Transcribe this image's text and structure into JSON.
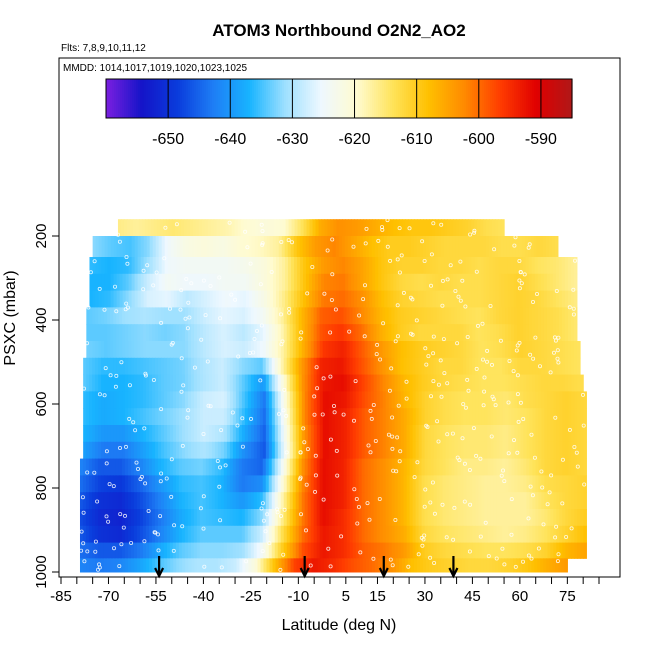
{
  "chart_data": {
    "type": "heatmap",
    "title": "ATOM3 Northbound O2N2_AO2",
    "flights_note": "Flts: 7,8,9,10,11,12",
    "dates_note": "MMDD: 1014,1017,1019,1020,1023,1025",
    "xlabel": "Latitude (deg N)",
    "ylabel": "PSXC (mbar)",
    "xlim": [
      -85,
      85
    ],
    "ylim": [
      1000,
      0
    ],
    "x_ticks": [
      -85,
      -70,
      -55,
      -40,
      -25,
      -10,
      5,
      15,
      30,
      45,
      60,
      75
    ],
    "x_tick_labels": [
      "-85",
      "-70",
      "-55",
      "-40",
      "-25",
      "-10",
      "5",
      "15",
      "30",
      "45",
      "60",
      "75"
    ],
    "y_ticks": [
      200,
      400,
      600,
      800,
      1000
    ],
    "y_tick_labels": [
      "200",
      "400",
      "600",
      "800",
      "1000"
    ],
    "colorbar": {
      "range": [
        -660,
        -585
      ],
      "ticks": [
        -650,
        -640,
        -630,
        -620,
        -610,
        -600,
        -590
      ],
      "tick_labels": [
        "-650",
        "-640",
        "-630",
        "-620",
        "-610",
        "-600",
        "-590"
      ],
      "colors": [
        "#7b1fe0",
        "#1414c8",
        "#0a3cdc",
        "#1e7ef5",
        "#18b4ff",
        "#9ee0ff",
        "#eef8ff",
        "#fffbd0",
        "#ffe35a",
        "#ffc000",
        "#ff8a00",
        "#ff3c00",
        "#e00000",
        "#b01818"
      ]
    },
    "profile_markers_lat": [
      -54,
      -8,
      17,
      39
    ],
    "pressure_bands": [
      {
        "p": 170,
        "lat_min": -67,
        "lat_max": 55,
        "values": [
          -616,
          -617,
          -616,
          -615,
          -616,
          -617,
          -618,
          -620,
          -621,
          -620,
          -614,
          -606,
          -603,
          -604,
          -606,
          -608,
          -609,
          -609,
          -610,
          -611,
          -613,
          -614
        ]
      },
      {
        "p": 230,
        "lat_min": -75,
        "lat_max": 72,
        "values": [
          -632,
          -634,
          -635,
          -632,
          -625,
          -622,
          -621,
          -622,
          -620,
          -619,
          -617,
          -609,
          -604,
          -602,
          -605,
          -608,
          -610,
          -610,
          -611,
          -612,
          -612,
          -612,
          -613,
          -613,
          -612,
          -613
        ]
      },
      {
        "p": 270,
        "lat_min": -76,
        "lat_max": 78,
        "values": [
          -636,
          -637,
          -636,
          -631,
          -625,
          -624,
          -624,
          -624,
          -623,
          -621,
          -617,
          -609,
          -604,
          -602,
          -605,
          -609,
          -611,
          -611,
          -612,
          -612,
          -613,
          -612,
          -612,
          -614,
          -615,
          -617
        ]
      },
      {
        "p": 310,
        "lat_min": -76,
        "lat_max": 78,
        "values": [
          -637,
          -637,
          -634,
          -628,
          -624,
          -625,
          -625,
          -624,
          -624,
          -621,
          -617,
          -609,
          -602,
          -601,
          -605,
          -609,
          -612,
          -613,
          -612,
          -613,
          -613,
          -612,
          -611,
          -613,
          -615,
          -617
        ]
      },
      {
        "p": 350,
        "lat_min": -76,
        "lat_max": 78,
        "values": [
          -637,
          -636,
          -632,
          -627,
          -626,
          -629,
          -627,
          -625,
          -626,
          -622,
          -616,
          -608,
          -601,
          -600,
          -603,
          -608,
          -611,
          -612,
          -613,
          -613,
          -613,
          -612,
          -611,
          -612,
          -614,
          -616
        ]
      },
      {
        "p": 390,
        "lat_min": -77,
        "lat_max": 78,
        "values": [
          -634,
          -633,
          -631,
          -630,
          -631,
          -631,
          -628,
          -626,
          -627,
          -624,
          -617,
          -607,
          -599,
          -598,
          -602,
          -607,
          -610,
          -611,
          -612,
          -613,
          -614,
          -612,
          -611,
          -612,
          -613,
          -615
        ]
      },
      {
        "p": 430,
        "lat_min": -77,
        "lat_max": 78,
        "values": [
          -634,
          -634,
          -633,
          -632,
          -633,
          -632,
          -629,
          -627,
          -629,
          -626,
          -618,
          -607,
          -598,
          -596,
          -600,
          -606,
          -610,
          -612,
          -612,
          -612,
          -614,
          -613,
          -611,
          -612,
          -613,
          -615
        ]
      },
      {
        "p": 470,
        "lat_min": -77,
        "lat_max": 79,
        "values": [
          -633,
          -634,
          -633,
          -632,
          -632,
          -632,
          -629,
          -627,
          -628,
          -625,
          -617,
          -606,
          -596,
          -594,
          -599,
          -604,
          -608,
          -610,
          -611,
          -612,
          -614,
          -613,
          -611,
          -612,
          -613,
          -614
        ]
      },
      {
        "p": 510,
        "lat_min": -78,
        "lat_max": 79,
        "values": [
          -634,
          -636,
          -636,
          -635,
          -634,
          -633,
          -630,
          -628,
          -632,
          -634,
          -618,
          -604,
          -594,
          -593,
          -598,
          -603,
          -608,
          -610,
          -612,
          -612,
          -614,
          -614,
          -612,
          -612,
          -613,
          -614
        ]
      },
      {
        "p": 550,
        "lat_min": -78,
        "lat_max": 80,
        "values": [
          -634,
          -637,
          -637,
          -636,
          -634,
          -633,
          -630,
          -628,
          -634,
          -640,
          -621,
          -603,
          -593,
          -592,
          -597,
          -602,
          -607,
          -610,
          -612,
          -613,
          -614,
          -614,
          -613,
          -612,
          -612,
          -613
        ]
      },
      {
        "p": 590,
        "lat_min": -78,
        "lat_max": 81,
        "values": [
          -636,
          -638,
          -637,
          -636,
          -634,
          -632,
          -628,
          -627,
          -635,
          -643,
          -622,
          -602,
          -592,
          -593,
          -598,
          -602,
          -607,
          -611,
          -613,
          -614,
          -614,
          -615,
          -613,
          -612,
          -611,
          -612
        ]
      },
      {
        "p": 630,
        "lat_min": -78,
        "lat_max": 81,
        "values": [
          -636,
          -638,
          -637,
          -635,
          -633,
          -631,
          -628,
          -628,
          -636,
          -644,
          -623,
          -602,
          -592,
          -594,
          -599,
          -602,
          -606,
          -611,
          -613,
          -614,
          -614,
          -615,
          -614,
          -612,
          -611,
          -612
        ]
      },
      {
        "p": 670,
        "lat_min": -78,
        "lat_max": 81,
        "values": [
          -637,
          -640,
          -640,
          -637,
          -634,
          -631,
          -628,
          -630,
          -638,
          -645,
          -624,
          -603,
          -592,
          -594,
          -599,
          -602,
          -606,
          -612,
          -614,
          -615,
          -615,
          -616,
          -614,
          -612,
          -611,
          -612
        ]
      },
      {
        "p": 710,
        "lat_min": -78,
        "lat_max": 81,
        "values": [
          -639,
          -643,
          -643,
          -639,
          -635,
          -632,
          -630,
          -633,
          -641,
          -646,
          -625,
          -603,
          -592,
          -594,
          -599,
          -602,
          -606,
          -612,
          -614,
          -615,
          -615,
          -616,
          -614,
          -612,
          -611,
          -612
        ]
      },
      {
        "p": 750,
        "lat_min": -79,
        "lat_max": 81,
        "values": [
          -642,
          -646,
          -646,
          -642,
          -637,
          -634,
          -633,
          -636,
          -643,
          -645,
          -624,
          -603,
          -592,
          -594,
          -600,
          -603,
          -607,
          -612,
          -614,
          -616,
          -616,
          -617,
          -615,
          -612,
          -611,
          -612
        ]
      },
      {
        "p": 790,
        "lat_min": -79,
        "lat_max": 81,
        "values": [
          -644,
          -648,
          -649,
          -645,
          -640,
          -636,
          -635,
          -637,
          -643,
          -641,
          -621,
          -602,
          -592,
          -594,
          -600,
          -603,
          -607,
          -613,
          -615,
          -616,
          -617,
          -617,
          -616,
          -613,
          -612,
          -611
        ]
      },
      {
        "p": 830,
        "lat_min": -79,
        "lat_max": 81,
        "values": [
          -646,
          -650,
          -651,
          -647,
          -642,
          -637,
          -635,
          -637,
          -640,
          -636,
          -618,
          -601,
          -592,
          -594,
          -600,
          -603,
          -607,
          -613,
          -615,
          -616,
          -617,
          -617,
          -617,
          -614,
          -612,
          -611
        ]
      },
      {
        "p": 870,
        "lat_min": -79,
        "lat_max": 81,
        "values": [
          -647,
          -651,
          -652,
          -648,
          -643,
          -638,
          -635,
          -636,
          -637,
          -632,
          -616,
          -601,
          -592,
          -595,
          -600,
          -603,
          -607,
          -613,
          -615,
          -616,
          -617,
          -617,
          -617,
          -615,
          -612,
          -610
        ]
      },
      {
        "p": 910,
        "lat_min": -79,
        "lat_max": 81,
        "values": [
          -646,
          -650,
          -651,
          -647,
          -642,
          -637,
          -634,
          -634,
          -634,
          -628,
          -613,
          -600,
          -593,
          -595,
          -600,
          -603,
          -606,
          -612,
          -614,
          -615,
          -616,
          -617,
          -616,
          -614,
          -611,
          -608
        ]
      },
      {
        "p": 950,
        "lat_min": -79,
        "lat_max": 81,
        "values": [
          -644,
          -646,
          -646,
          -643,
          -638,
          -634,
          -632,
          -632,
          -631,
          -624,
          -610,
          -598,
          -593,
          -595,
          -599,
          -601,
          -604,
          -610,
          -612,
          -613,
          -614,
          -614,
          -613,
          -611,
          -607,
          -605
        ]
      },
      {
        "p": 985,
        "lat_min": -79,
        "lat_max": 75,
        "values": [
          -642,
          -643,
          -642,
          -639,
          -635,
          -632,
          -630,
          -630,
          -628,
          -621,
          -608,
          -597,
          -593,
          -595,
          -598,
          -600,
          -603,
          -608,
          -610,
          -611,
          -612,
          -612,
          -611,
          -609,
          -606,
          -604
        ]
      }
    ]
  }
}
